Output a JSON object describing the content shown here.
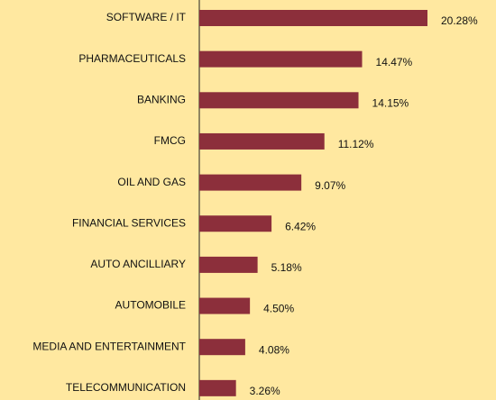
{
  "chart_data": {
    "type": "bar",
    "orientation": "horizontal",
    "categories": [
      "SOFTWARE / IT",
      "PHARMACEUTICALS",
      "BANKING",
      "FMCG",
      "OIL AND GAS",
      "FINANCIAL SERVICES",
      "AUTO ANCILLIARY",
      "AUTOMOBILE",
      "MEDIA AND ENTERTAINMENT",
      "TELECOMMUNICATION"
    ],
    "values": [
      20.28,
      14.47,
      14.15,
      11.12,
      9.07,
      6.42,
      5.18,
      4.5,
      4.08,
      3.26
    ],
    "value_labels": [
      "20.28%",
      "14.47%",
      "14.15%",
      "11.12%",
      "9.07%",
      "6.42%",
      "5.18%",
      "4.50%",
      "4.08%",
      "3.26%"
    ],
    "color": "#8c2f3b"
  }
}
